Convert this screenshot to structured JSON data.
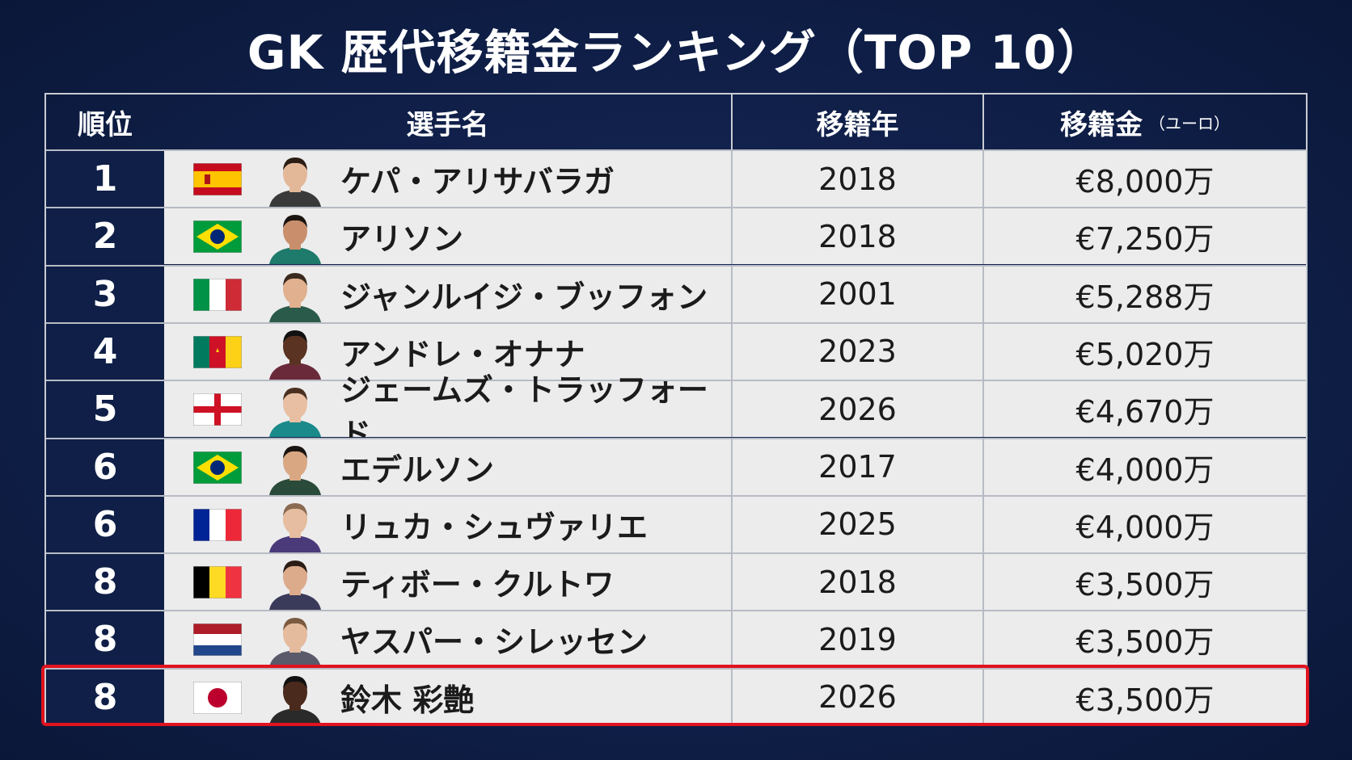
{
  "title": "GK 歴代移籍金ランキング（TOP 10）",
  "table": {
    "headers": [
      "順位",
      "選手名",
      "移籍年",
      "移籍金"
    ],
    "fee_unit": "（ユーロ）",
    "rows": [
      [
        "1",
        "ケパ・アリサバラガ",
        "2018",
        "€8,000万"
      ],
      [
        "2",
        "アリソン",
        "2018",
        "€7,250万"
      ],
      [
        "3",
        "ジャンルイジ・ブッフォン",
        "2001",
        "€5,288万"
      ],
      [
        "4",
        "アンドレ・オナナ",
        "2023",
        "€5,020万"
      ],
      [
        "5",
        "ジェームズ・トラッフォード",
        "2026",
        "€4,670万"
      ],
      [
        "6",
        "エデルソン",
        "2017",
        "€4,000万"
      ],
      [
        "6",
        "リュカ・シュヴァリエ",
        "2025",
        "€4,000万"
      ],
      [
        "8",
        "ティボー・クルトワ",
        "2018",
        "€3,500万"
      ],
      [
        "8",
        "ヤスパー・シレッセン",
        "2019",
        "€3,500万"
      ],
      [
        "8",
        "鈴木 彩艶",
        "2026",
        "€3,500万"
      ]
    ]
  }
}
